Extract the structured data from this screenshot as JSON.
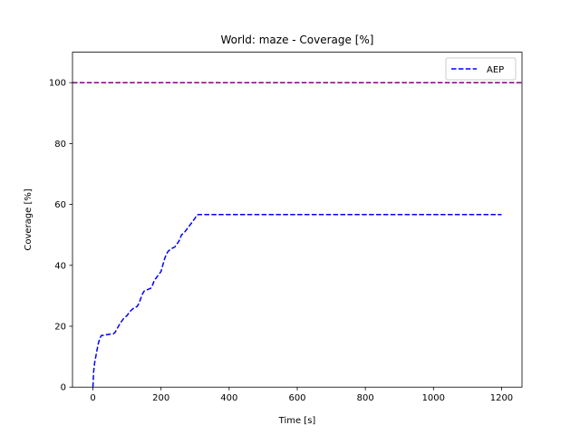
{
  "chart_data": {
    "type": "line",
    "title": "World: maze - Coverage [%]",
    "xlabel": "Time [s]",
    "ylabel": "Coverage [%]",
    "xlim": [
      -60,
      1260
    ],
    "ylim": [
      0,
      110
    ],
    "xticks": [
      0,
      200,
      400,
      600,
      800,
      1000,
      1200
    ],
    "yticks": [
      0,
      20,
      40,
      60,
      80,
      100
    ],
    "grid": false,
    "legend": {
      "placement": "top-right"
    },
    "reference_line": {
      "y": 100,
      "color": "#800080",
      "style": "dashed"
    },
    "series": [
      {
        "name": "AEP",
        "color": "#0000ff",
        "style": "dashed",
        "x": [
          0,
          2,
          5,
          10,
          15,
          20,
          25,
          30,
          40,
          50,
          60,
          65,
          70,
          80,
          90,
          100,
          110,
          120,
          130,
          135,
          140,
          145,
          150,
          160,
          170,
          175,
          180,
          190,
          200,
          205,
          210,
          215,
          220,
          230,
          240,
          250,
          255,
          260,
          270,
          280,
          290,
          300,
          305,
          310,
          400,
          600,
          800,
          1000,
          1200
        ],
        "y": [
          0,
          5,
          8,
          11,
          14,
          16,
          17,
          17,
          17.2,
          17.4,
          17.5,
          18,
          19,
          21,
          22.5,
          23.5,
          25,
          26,
          26.5,
          27.5,
          29,
          30.5,
          31.5,
          32,
          32.5,
          33.5,
          35,
          36.5,
          38,
          40,
          42,
          43.5,
          44.5,
          45.5,
          46,
          47.5,
          48.5,
          50,
          51,
          52.5,
          54,
          55.5,
          56.5,
          56.7,
          56.7,
          56.7,
          56.7,
          56.7,
          56.7
        ]
      }
    ]
  }
}
